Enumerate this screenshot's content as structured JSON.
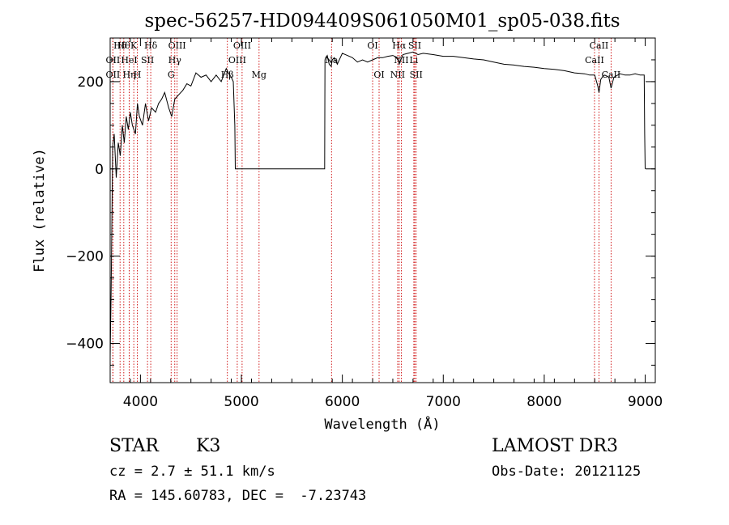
{
  "chart_data": {
    "type": "line",
    "title": "spec-56257-HD094409S061050M01_sp05-038.fits",
    "xlabel": "Wavelength (Å)",
    "ylabel": "Flux (relative)",
    "xlim": [
      3700,
      9100
    ],
    "ylim": [
      -490,
      300
    ],
    "xticks": [
      4000,
      5000,
      6000,
      7000,
      8000,
      9000
    ],
    "yticks": [
      200,
      0,
      -200,
      -400
    ],
    "x_minor_step": 200,
    "y_minor_step": 50,
    "grid": false,
    "line_color": "#000000",
    "marker_color": "#cc0000",
    "series": [
      {
        "x": [
          3700,
          3710,
          3725,
          3740,
          3760,
          3780,
          3800,
          3820,
          3840,
          3860,
          3880,
          3900,
          3920,
          3950,
          3970,
          3990,
          4020,
          4050,
          4080,
          4110,
          4150,
          4180,
          4210,
          4240,
          4280,
          4310,
          4340,
          4380,
          4420,
          4460,
          4500,
          4550,
          4600,
          4650,
          4700,
          4750,
          4800,
          4850,
          4870,
          4900,
          4920,
          4935,
          4940,
          5000,
          5200,
          5500,
          5800,
          5825,
          5828,
          5835,
          5850,
          5870,
          5890,
          5900,
          5920,
          5950,
          6000,
          6050,
          6100,
          6150,
          6200,
          6250,
          6300,
          6350,
          6400,
          6450,
          6500,
          6550,
          6563,
          6580,
          6600,
          6650,
          6700,
          6750,
          6800,
          6900,
          7000,
          7100,
          7200,
          7300,
          7400,
          7500,
          7600,
          7700,
          7800,
          7900,
          8000,
          8100,
          8200,
          8300,
          8400,
          8450,
          8500,
          8530,
          8542,
          8560,
          8580,
          8600,
          8640,
          8662,
          8690,
          8750,
          8800,
          8850,
          8900,
          8950,
          8990,
          8995,
          9000
        ],
        "y": [
          -430,
          -280,
          50,
          80,
          -20,
          60,
          30,
          100,
          60,
          120,
          90,
          130,
          100,
          80,
          150,
          120,
          100,
          150,
          110,
          140,
          130,
          150,
          160,
          175,
          140,
          120,
          160,
          170,
          180,
          195,
          190,
          220,
          210,
          215,
          200,
          215,
          200,
          230,
          220,
          210,
          200,
          100,
          0,
          0,
          0,
          0,
          0,
          0,
          250,
          255,
          260,
          240,
          235,
          250,
          255,
          240,
          265,
          260,
          255,
          245,
          250,
          245,
          250,
          255,
          255,
          258,
          260,
          255,
          240,
          250,
          262,
          265,
          268,
          262,
          265,
          262,
          258,
          258,
          255,
          252,
          250,
          245,
          240,
          238,
          235,
          233,
          230,
          228,
          225,
          220,
          218,
          215,
          215,
          190,
          175,
          205,
          212,
          215,
          210,
          185,
          210,
          218,
          215,
          215,
          218,
          215,
          215,
          80,
          0
        ]
      }
    ],
    "lines": [
      {
        "name": "Hδ",
        "x": 3798,
        "row": 1
      },
      {
        "name": "OII",
        "x": 3727,
        "row": 2
      },
      {
        "name": "OII",
        "x": 3727,
        "row": 3
      },
      {
        "name": "Hθ",
        "x": 3835,
        "row": 1
      },
      {
        "name": "HeI",
        "x": 3889,
        "row": 2
      },
      {
        "name": "Hη",
        "x": 3889,
        "row": 3
      },
      {
        "name": "K",
        "x": 3934,
        "row": 1
      },
      {
        "name": "SII",
        "x": 4070,
        "row": 2
      },
      {
        "name": "H",
        "x": 3969,
        "row": 3
      },
      {
        "name": "Hδ",
        "x": 4102,
        "row": 1
      },
      {
        "name": "OIII",
        "x": 4363,
        "row": 1
      },
      {
        "name": "Hγ",
        "x": 4340,
        "row": 2
      },
      {
        "name": "G",
        "x": 4304,
        "row": 3
      },
      {
        "name": "Hβ",
        "x": 4861,
        "row": 3
      },
      {
        "name": "OIII",
        "x": 5007,
        "row": 1
      },
      {
        "name": "OIII",
        "x": 4959,
        "row": 2
      },
      {
        "name": "Mg",
        "x": 5175,
        "row": 3
      },
      {
        "name": "Na",
        "x": 5893,
        "row": 2
      },
      {
        "name": "OI",
        "x": 6300,
        "row": 1
      },
      {
        "name": "OI",
        "x": 6364,
        "row": 3
      },
      {
        "name": "Hα",
        "x": 6563,
        "row": 1
      },
      {
        "name": "SII",
        "x": 6717,
        "row": 1
      },
      {
        "name": "NII",
        "x": 6584,
        "row": 2
      },
      {
        "name": "Li",
        "x": 6708,
        "row": 2
      },
      {
        "name": "NII",
        "x": 6548,
        "row": 3
      },
      {
        "name": "SII",
        "x": 6731,
        "row": 3
      },
      {
        "name": "CaII",
        "x": 8542,
        "row": 1
      },
      {
        "name": "CaII",
        "x": 8498,
        "row": 2
      },
      {
        "name": "CaII",
        "x": 8662,
        "row": 3
      }
    ]
  },
  "info": {
    "class_label": "STAR",
    "subclass": "K3",
    "survey": "LAMOST DR3",
    "cz": "cz = 2.7 ± 51.1 km/s",
    "obs_date": "Obs-Date: 20121125",
    "radec": "RA = 145.60783, DEC =  -7.23743"
  }
}
